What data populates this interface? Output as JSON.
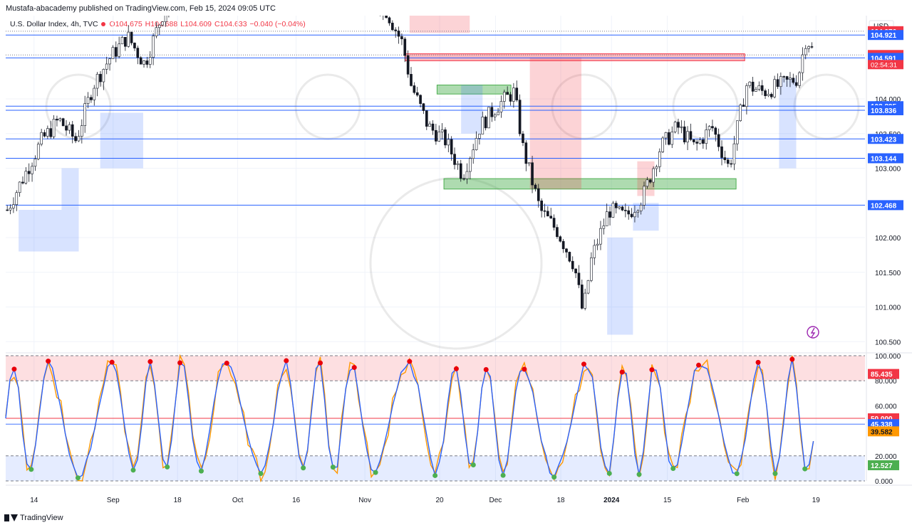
{
  "header": {
    "published": "Mustafa-abacademy published on TradingView.com, Feb 15, 2024 09:05 UTC"
  },
  "legend": {
    "symbol": "U.S. Dollar Index, 4h, TVC",
    "open": "O104.675",
    "high": "H104.688",
    "low": "L104.609",
    "close": "C104.633",
    "change": "−0.040 (−0.04%)"
  },
  "footer": {
    "brand": "TradingView"
  },
  "colors": {
    "bull": "#089981",
    "bear": "#f23645",
    "level_line": "#2962ff",
    "stoch_k": "#2962ff",
    "stoch_d": "#ff9800",
    "overbought_fill": "#f7c6c9",
    "oversold_fill": "#d6e4fb"
  },
  "chart_data": [
    {
      "type": "candlestick",
      "currency_label": "USD",
      "ylim": [
        100.4,
        105.2
      ],
      "y_ticks": [
        "104.000",
        "103.500",
        "103.000",
        "102.000",
        "101.500",
        "101.000",
        "100.500"
      ],
      "x_ticks": [
        "14",
        "Sep",
        "18",
        "Oct",
        "16",
        "Nov",
        "20",
        "Dec",
        "18",
        "2024",
        "15",
        "Feb",
        "19"
      ],
      "horizontal_levels": [
        {
          "value": 104.976,
          "label": "104.976",
          "style": "red"
        },
        {
          "value": 104.921,
          "label": "104.921",
          "style": "blue"
        },
        {
          "value": 104.633,
          "label": "104.633",
          "style": "red"
        },
        {
          "value": 104.591,
          "label": "104.591",
          "style": "blue"
        },
        {
          "value": 103.895,
          "label": "103.895",
          "style": "blue"
        },
        {
          "value": 103.836,
          "label": "103.836",
          "style": "blue"
        },
        {
          "value": 103.423,
          "label": "103.423",
          "style": "blue"
        },
        {
          "value": 103.144,
          "label": "103.144",
          "style": "blue"
        },
        {
          "value": 102.468,
          "label": "102.468",
          "style": "blue"
        }
      ],
      "countdown": "02:54:31",
      "zones": [
        {
          "kind": "supply",
          "x_from": 0.465,
          "x_to": 0.86,
          "y_from": 104.55,
          "y_to": 104.65
        },
        {
          "kind": "demand",
          "x_from": 0.502,
          "x_to": 0.588,
          "y_from": 104.07,
          "y_to": 104.2
        },
        {
          "kind": "demand",
          "x_from": 0.51,
          "x_to": 0.85,
          "y_from": 102.7,
          "y_to": 102.85
        }
      ],
      "trend": [
        {
          "x": 0.0,
          "y": 102.4
        },
        {
          "x": 0.02,
          "y": 102.9
        },
        {
          "x": 0.04,
          "y": 103.4
        },
        {
          "x": 0.06,
          "y": 103.7
        },
        {
          "x": 0.08,
          "y": 103.4
        },
        {
          "x": 0.1,
          "y": 104.2
        },
        {
          "x": 0.12,
          "y": 104.6
        },
        {
          "x": 0.14,
          "y": 104.9
        },
        {
          "x": 0.16,
          "y": 104.5
        },
        {
          "x": 0.18,
          "y": 105.2
        },
        {
          "x": 0.2,
          "y": 105.6
        },
        {
          "x": 0.22,
          "y": 106.0
        },
        {
          "x": 0.24,
          "y": 106.1
        },
        {
          "x": 0.26,
          "y": 106.3
        },
        {
          "x": 0.28,
          "y": 105.9
        },
        {
          "x": 0.3,
          "y": 105.5
        },
        {
          "x": 0.32,
          "y": 105.8
        },
        {
          "x": 0.34,
          "y": 106.2
        },
        {
          "x": 0.36,
          "y": 106.5
        },
        {
          "x": 0.38,
          "y": 106.0
        },
        {
          "x": 0.4,
          "y": 105.7
        },
        {
          "x": 0.42,
          "y": 105.5
        },
        {
          "x": 0.44,
          "y": 105.3
        },
        {
          "x": 0.46,
          "y": 104.8
        },
        {
          "x": 0.47,
          "y": 104.2
        },
        {
          "x": 0.49,
          "y": 103.6
        },
        {
          "x": 0.51,
          "y": 103.4
        },
        {
          "x": 0.53,
          "y": 102.9
        },
        {
          "x": 0.55,
          "y": 103.6
        },
        {
          "x": 0.57,
          "y": 103.9
        },
        {
          "x": 0.59,
          "y": 104.1
        },
        {
          "x": 0.6,
          "y": 103.3
        },
        {
          "x": 0.62,
          "y": 102.4
        },
        {
          "x": 0.64,
          "y": 102.1
        },
        {
          "x": 0.66,
          "y": 101.6
        },
        {
          "x": 0.67,
          "y": 100.9
        },
        {
          "x": 0.68,
          "y": 101.7
        },
        {
          "x": 0.7,
          "y": 102.4
        },
        {
          "x": 0.72,
          "y": 102.3
        },
        {
          "x": 0.74,
          "y": 102.6
        },
        {
          "x": 0.76,
          "y": 103.3
        },
        {
          "x": 0.78,
          "y": 103.6
        },
        {
          "x": 0.8,
          "y": 103.3
        },
        {
          "x": 0.82,
          "y": 103.6
        },
        {
          "x": 0.84,
          "y": 103.0
        },
        {
          "x": 0.86,
          "y": 104.2
        },
        {
          "x": 0.88,
          "y": 104.1
        },
        {
          "x": 0.9,
          "y": 104.2
        },
        {
          "x": 0.92,
          "y": 104.3
        },
        {
          "x": 0.93,
          "y": 104.9
        },
        {
          "x": 0.94,
          "y": 104.6
        }
      ]
    },
    {
      "type": "line",
      "title": "",
      "ylim": [
        0,
        100
      ],
      "y_ticks": [
        "100.000",
        "80.000",
        "60.000",
        "40.000",
        "20.000",
        "0.000"
      ],
      "levels": [
        {
          "value": 85.435,
          "label": "85.435",
          "style": "red"
        },
        {
          "value": 50.0,
          "label": "50.000",
          "style": "red"
        },
        {
          "value": 45.338,
          "label": "45.338",
          "style": "blue"
        },
        {
          "value": 39.582,
          "label": "39.582",
          "style": "orange"
        },
        {
          "value": 12.527,
          "label": "12.527",
          "style": "green"
        }
      ],
      "bands": {
        "overbought": [
          80,
          100
        ],
        "oversold": [
          0,
          20
        ]
      }
    }
  ]
}
